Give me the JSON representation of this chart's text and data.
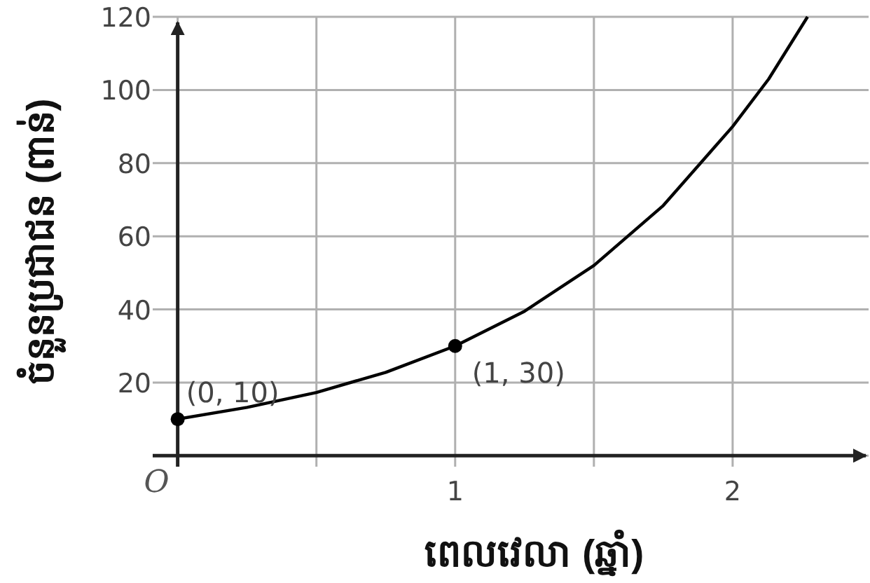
{
  "chart_data": {
    "type": "line",
    "xlabel": "ពេលវេលា (ឆ្នាំ)",
    "ylabel": "ចំនួនប្រជាជន (ពាន់)",
    "xlim": [
      -0.09,
      2.49
    ],
    "ylim": [
      -3,
      120
    ],
    "xticks": [
      {
        "value": 0,
        "label": "O"
      },
      {
        "value": 0.5,
        "label": null
      },
      1,
      {
        "value": 1.5,
        "label": null
      },
      2
    ],
    "yticks": [
      {
        "value": 0,
        "label": null
      },
      20,
      40,
      60,
      80,
      100,
      120
    ],
    "grid": true,
    "series": [
      {
        "color": "#000000",
        "marker": "none",
        "x": [
          0,
          0.25,
          0.5,
          0.75,
          1,
          1.25,
          1.5,
          1.75,
          2,
          2.13,
          2.27
        ],
        "values": [
          10,
          13.2,
          17.3,
          22.8,
          30,
          39.5,
          52,
          68.4,
          90,
          103,
          120
        ]
      },
      {
        "type": "scatter",
        "color": "#000000",
        "marker": "circle",
        "x": [
          0,
          1
        ],
        "values": [
          10,
          30
        ]
      }
    ],
    "annotations": [
      {
        "text": "(0, 10)",
        "x": 0,
        "y": 10
      },
      {
        "text": "(1, 30)",
        "x": 1,
        "y": 30
      }
    ]
  }
}
